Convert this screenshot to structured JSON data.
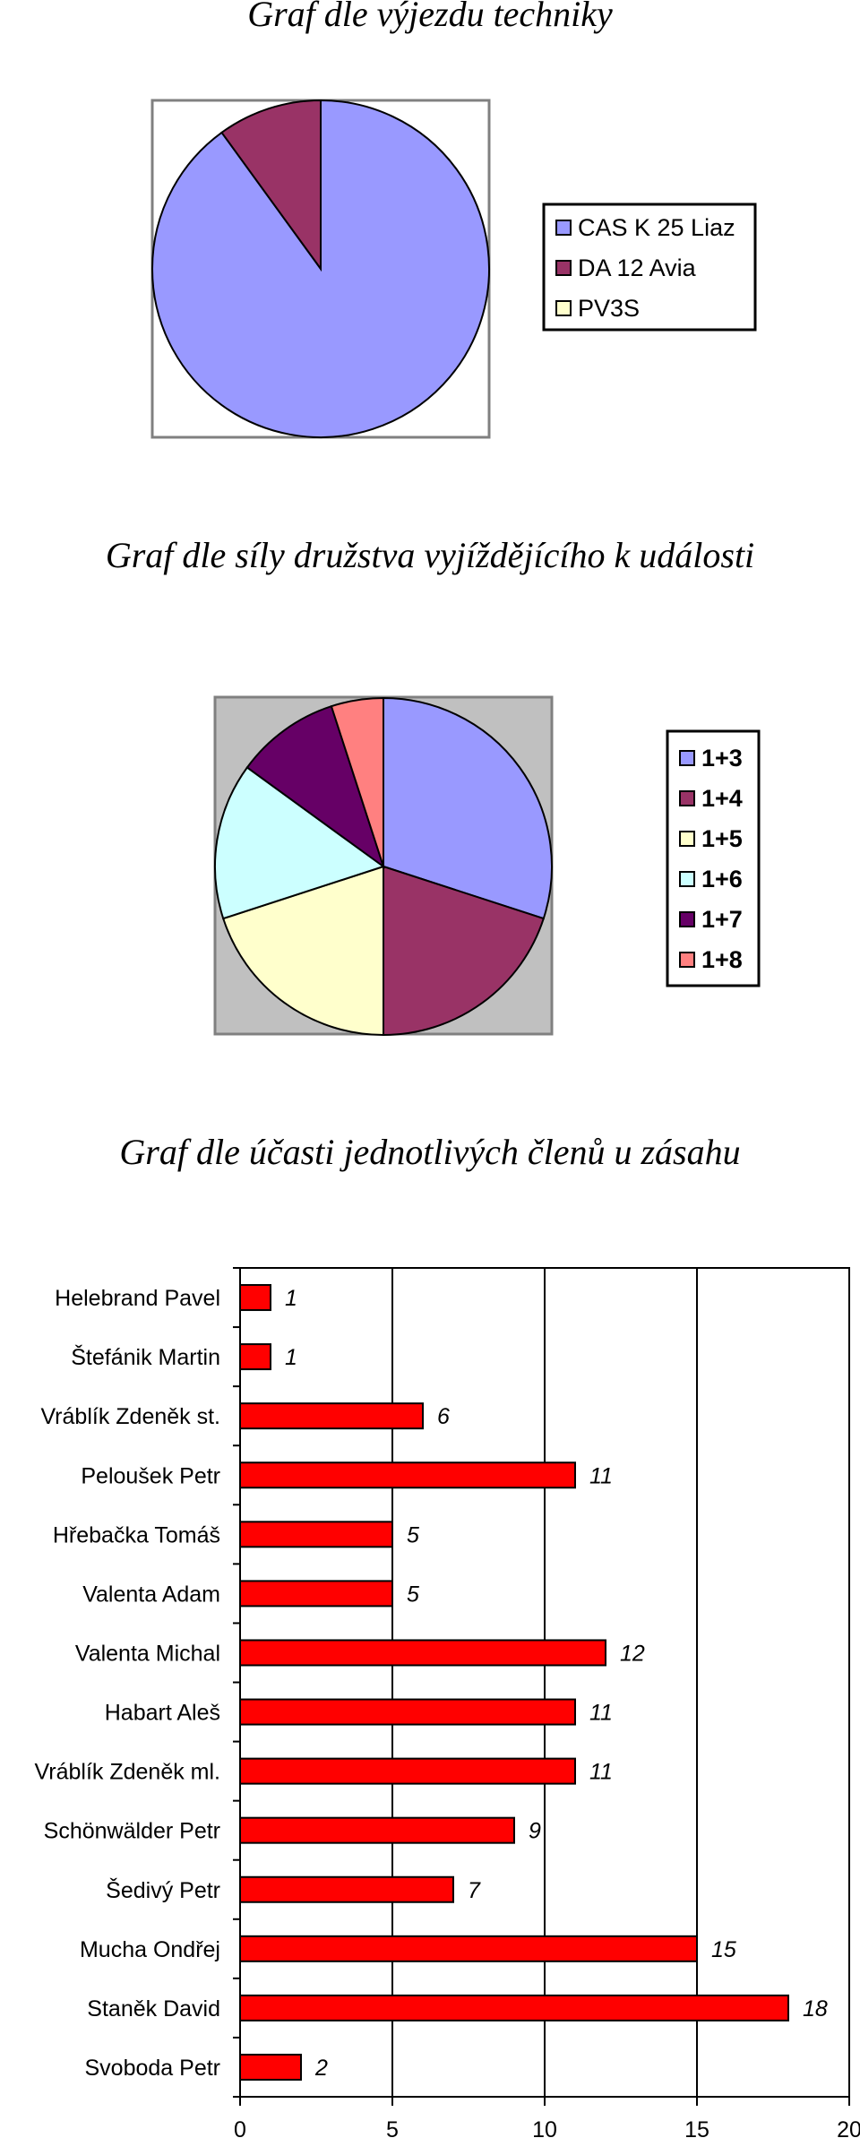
{
  "chart_data": [
    {
      "type": "pie",
      "title": "Graf dle výjezdu techniky",
      "categories": [
        "CAS K 25 Liaz",
        "DA 12 Avia",
        "PV3S"
      ],
      "values": [
        90,
        10,
        0
      ],
      "colors": [
        "#9999ff",
        "#993366",
        "#ffffcc"
      ],
      "legend_placement": "right"
    },
    {
      "type": "pie",
      "title": "Graf dle síly družstva vyjíždějícího k události",
      "categories": [
        "1+3",
        "1+4",
        "1+5",
        "1+6",
        "1+7",
        "1+8"
      ],
      "values": [
        30,
        20,
        20,
        15,
        10,
        5
      ],
      "colors": [
        "#9999ff",
        "#993366",
        "#ffffcc",
        "#ccffff",
        "#660066",
        "#ff8080"
      ],
      "legend_placement": "right"
    },
    {
      "type": "bar",
      "orientation": "horizontal",
      "title": "Graf dle účasti jednotlivých členů u zásahu",
      "categories": [
        "Helebrand Pavel",
        "Štefánik Martin",
        "Vráblík Zdeněk st.",
        "Peloušek Petr",
        "Hřebačka Tomáš",
        "Valenta Adam",
        "Valenta Michal",
        "Habart Aleš",
        "Vráblík Zdeněk ml.",
        "Schönwälder Petr",
        "Šedivý Petr",
        "Mucha Ondřej",
        "Staněk David",
        "Svoboda Petr"
      ],
      "values": [
        1,
        1,
        6,
        11,
        5,
        5,
        12,
        11,
        11,
        9,
        7,
        15,
        18,
        2
      ],
      "xlim": [
        0,
        20
      ],
      "xticks": [
        "0",
        "5",
        "10",
        "15",
        "20"
      ],
      "grid": true,
      "bar_color": "#ff0000"
    }
  ]
}
